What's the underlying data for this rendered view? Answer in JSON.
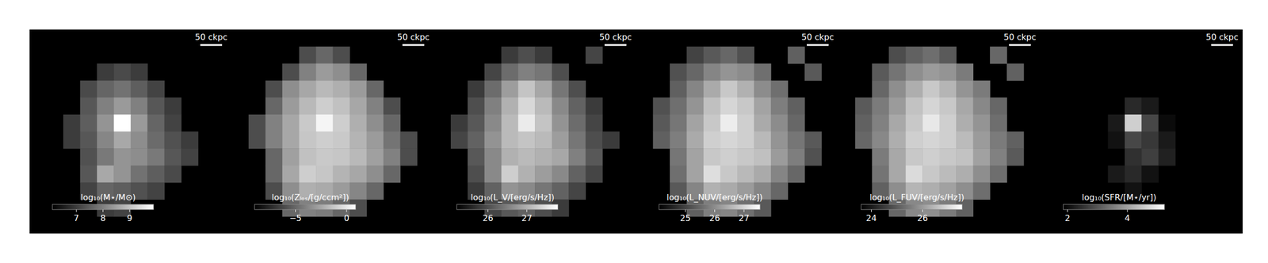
{
  "chart_data": [
    {
      "type": "heatmap",
      "colorbar_label": "log₁₀(M⋆/M⊙)",
      "colorbar_range": [
        6.1,
        9.9
      ],
      "colorbar_ticks": [
        7,
        8,
        9
      ],
      "scale_label": "50 ckpc",
      "tick_labels": false,
      "color": "gray",
      "cells": [
        [
          null,
          null,
          null,
          null,
          null,
          null,
          null,
          null,
          null,
          null,
          null,
          null
        ],
        [
          null,
          null,
          null,
          null,
          null,
          null,
          null,
          null,
          null,
          null,
          null,
          null
        ],
        [
          null,
          null,
          null,
          null,
          7.0,
          7.2,
          7.0,
          null,
          null,
          null,
          null,
          null
        ],
        [
          null,
          null,
          null,
          7.2,
          7.6,
          7.8,
          7.5,
          7.1,
          null,
          null,
          null,
          null
        ],
        [
          null,
          null,
          null,
          7.4,
          8.0,
          8.4,
          8.0,
          7.4,
          7.0,
          null,
          null,
          null
        ],
        [
          null,
          null,
          7.0,
          7.5,
          8.3,
          9.9,
          8.4,
          7.6,
          7.1,
          null,
          null,
          null
        ],
        [
          null,
          null,
          7.0,
          7.4,
          8.1,
          8.6,
          8.2,
          7.7,
          7.3,
          7.0,
          null,
          null
        ],
        [
          null,
          null,
          null,
          7.3,
          7.9,
          8.3,
          8.2,
          7.9,
          7.4,
          7.1,
          null,
          null
        ],
        [
          null,
          null,
          null,
          7.4,
          8.6,
          8.3,
          7.8,
          7.5,
          7.2,
          null,
          null,
          null
        ],
        [
          null,
          null,
          null,
          7.1,
          7.6,
          7.5,
          7.3,
          7.1,
          null,
          null,
          null,
          null
        ],
        [
          null,
          null,
          null,
          null,
          7.0,
          7.1,
          null,
          null,
          null,
          null,
          null,
          null
        ],
        [
          null,
          null,
          null,
          null,
          null,
          null,
          null,
          null,
          null,
          null,
          null,
          null
        ]
      ]
    },
    {
      "type": "heatmap",
      "colorbar_label": "log₁₀(Zₗₒₛ/[g/ccm²])",
      "colorbar_range": [
        -9,
        0.9
      ],
      "colorbar_ticks": [
        {
          "value": -5,
          "label": "−5"
        },
        0
      ],
      "scale_label": "50 ckpc",
      "tick_labels": false,
      "color": "gray",
      "cells": [
        [
          null,
          null,
          null,
          null,
          null,
          null,
          null,
          null,
          null,
          null,
          null,
          null
        ],
        [
          null,
          null,
          null,
          null,
          -6,
          -5,
          -6,
          null,
          null,
          null,
          null,
          null
        ],
        [
          null,
          null,
          null,
          -6,
          -4,
          -3,
          -3.5,
          -5,
          null,
          null,
          null,
          null
        ],
        [
          null,
          null,
          -6,
          -3.5,
          -2.5,
          -1.8,
          -2.2,
          -3,
          -5,
          null,
          null,
          null
        ],
        [
          null,
          null,
          -5,
          -3,
          -1.8,
          -1.0,
          -1.5,
          -2.5,
          -4,
          -6,
          null,
          null
        ],
        [
          null,
          -6,
          -4,
          -2.5,
          -1.2,
          0.5,
          -1.0,
          -2.2,
          -3.5,
          -5,
          null,
          null
        ],
        [
          null,
          -6,
          -4,
          -2.5,
          -1.3,
          -1.0,
          -1.2,
          -2.0,
          -3,
          -4.5,
          -6,
          null
        ],
        [
          null,
          null,
          -5,
          -2.8,
          -1.5,
          -1.2,
          -1.3,
          -1.8,
          -2.8,
          -4,
          -6,
          null
        ],
        [
          null,
          null,
          -5,
          -2.5,
          -1.0,
          -1.3,
          -2.0,
          -2.5,
          -3.5,
          -5,
          null,
          null
        ],
        [
          null,
          null,
          -6,
          -3.5,
          -2.2,
          -2.4,
          -3,
          -3.8,
          -5,
          null,
          null,
          null
        ],
        [
          null,
          null,
          null,
          -5,
          -4,
          -4.2,
          -5,
          -6,
          null,
          null,
          null,
          null
        ],
        [
          null,
          null,
          null,
          null,
          null,
          null,
          null,
          null,
          null,
          null,
          null,
          null
        ]
      ]
    },
    {
      "type": "heatmap",
      "colorbar_label": "log₁₀(L_V/[erg/s/Hz])",
      "colorbar_range": [
        25.2,
        27.8
      ],
      "colorbar_ticks": [
        26,
        27
      ],
      "scale_label": "50 ckpc",
      "tick_labels": false,
      "color": "gray",
      "cells": [
        [
          null,
          null,
          null,
          null,
          null,
          null,
          null,
          null,
          null,
          null,
          null,
          null
        ],
        [
          null,
          null,
          null,
          null,
          25.8,
          26.0,
          25.8,
          null,
          null,
          25.9,
          null,
          null
        ],
        [
          null,
          null,
          null,
          25.9,
          26.3,
          26.5,
          26.4,
          26.0,
          null,
          null,
          null,
          null
        ],
        [
          null,
          null,
          25.8,
          26.3,
          26.8,
          27.2,
          26.9,
          26.4,
          26.0,
          null,
          null,
          null
        ],
        [
          null,
          null,
          26.0,
          26.5,
          27.0,
          27.4,
          27.1,
          26.6,
          26.2,
          25.8,
          null,
          null
        ],
        [
          null,
          25.8,
          26.1,
          26.6,
          27.1,
          27.6,
          27.2,
          26.7,
          26.3,
          25.9,
          null,
          null
        ],
        [
          null,
          25.9,
          26.2,
          26.7,
          27.1,
          27.2,
          27.1,
          26.8,
          26.4,
          26.0,
          25.8,
          null
        ],
        [
          null,
          null,
          26.1,
          26.6,
          27.0,
          27.1,
          27.0,
          26.9,
          26.5,
          26.1,
          null,
          null
        ],
        [
          null,
          null,
          26.0,
          26.6,
          27.3,
          27.0,
          26.8,
          26.6,
          26.2,
          25.9,
          null,
          null
        ],
        [
          null,
          null,
          25.8,
          26.2,
          26.7,
          26.6,
          26.4,
          26.2,
          25.9,
          null,
          null,
          null
        ],
        [
          null,
          null,
          null,
          25.9,
          26.1,
          26.2,
          26.0,
          25.8,
          null,
          null,
          null,
          null
        ],
        [
          null,
          null,
          null,
          null,
          null,
          null,
          null,
          null,
          null,
          null,
          null,
          null
        ]
      ]
    },
    {
      "type": "heatmap",
      "colorbar_label": "log₁₀(L_NUV/[erg/s/Hz])",
      "colorbar_range": [
        24.1,
        27.55
      ],
      "colorbar_ticks": [
        25,
        26,
        27
      ],
      "scale_label": "50 ckpc",
      "tick_labels": false,
      "color": "gray",
      "cells": [
        [
          null,
          null,
          null,
          null,
          null,
          null,
          null,
          null,
          null,
          null,
          null,
          null
        ],
        [
          null,
          null,
          null,
          25.0,
          25.3,
          25.5,
          25.2,
          null,
          null,
          25.4,
          null,
          null
        ],
        [
          null,
          null,
          25.2,
          25.5,
          25.9,
          26.1,
          26.0,
          25.6,
          null,
          null,
          25.3,
          null
        ],
        [
          null,
          null,
          25.4,
          25.9,
          26.4,
          26.8,
          26.5,
          26.0,
          25.6,
          null,
          null,
          null
        ],
        [
          null,
          25.2,
          25.6,
          26.1,
          26.7,
          27.0,
          26.8,
          26.3,
          25.8,
          25.4,
          null,
          null
        ],
        [
          null,
          25.3,
          25.7,
          26.3,
          26.8,
          27.3,
          26.9,
          26.4,
          26.0,
          25.5,
          null,
          null
        ],
        [
          null,
          25.4,
          25.8,
          26.4,
          26.9,
          27.0,
          26.9,
          26.6,
          26.1,
          25.7,
          25.3,
          null
        ],
        [
          null,
          null,
          25.7,
          26.3,
          26.8,
          26.9,
          26.8,
          26.7,
          26.2,
          25.8,
          25.2,
          null
        ],
        [
          null,
          null,
          25.6,
          26.3,
          27.1,
          26.8,
          26.6,
          26.4,
          25.9,
          25.5,
          null,
          null
        ],
        [
          null,
          null,
          25.3,
          25.9,
          26.5,
          26.4,
          26.2,
          25.9,
          25.5,
          null,
          null,
          null
        ],
        [
          null,
          null,
          null,
          25.4,
          25.8,
          25.9,
          25.6,
          25.3,
          null,
          null,
          null,
          null
        ],
        [
          null,
          null,
          null,
          null,
          null,
          null,
          null,
          null,
          null,
          null,
          null,
          null
        ]
      ]
    },
    {
      "type": "heatmap",
      "colorbar_label": "log₁₀(L_FUV/[erg/s/Hz])",
      "colorbar_range": [
        23.6,
        27.55
      ],
      "colorbar_ticks": [
        24,
        26
      ],
      "scale_label": "50 ckpc",
      "tick_labels": false,
      "color": "gray",
      "cells": [
        [
          null,
          null,
          null,
          null,
          null,
          null,
          null,
          null,
          null,
          null,
          null,
          null
        ],
        [
          null,
          null,
          null,
          24.8,
          25.1,
          25.3,
          25.0,
          null,
          null,
          25.2,
          null,
          null
        ],
        [
          null,
          null,
          25.0,
          25.4,
          25.8,
          26.0,
          25.9,
          25.5,
          null,
          null,
          25.1,
          null
        ],
        [
          null,
          null,
          25.2,
          25.8,
          26.3,
          26.7,
          26.4,
          25.9,
          25.5,
          null,
          null,
          null
        ],
        [
          null,
          25.0,
          25.5,
          26.0,
          26.6,
          26.9,
          26.7,
          26.2,
          25.7,
          25.2,
          null,
          null
        ],
        [
          null,
          25.1,
          25.6,
          26.2,
          26.7,
          27.2,
          26.8,
          26.3,
          25.9,
          25.3,
          null,
          null
        ],
        [
          null,
          25.2,
          25.7,
          26.3,
          26.8,
          26.9,
          26.8,
          26.5,
          26.0,
          25.5,
          25.1,
          null
        ],
        [
          null,
          null,
          25.5,
          26.2,
          26.7,
          26.8,
          26.7,
          26.6,
          26.1,
          25.6,
          25.0,
          null
        ],
        [
          null,
          null,
          25.4,
          26.2,
          27.0,
          26.7,
          26.5,
          26.3,
          25.8,
          25.3,
          null,
          null
        ],
        [
          null,
          null,
          25.1,
          25.8,
          26.4,
          26.3,
          26.1,
          25.8,
          25.3,
          null,
          null,
          null
        ],
        [
          null,
          null,
          null,
          25.2,
          25.7,
          25.8,
          25.5,
          25.1,
          null,
          null,
          null,
          null
        ],
        [
          null,
          null,
          null,
          null,
          null,
          null,
          null,
          null,
          null,
          null,
          null,
          null
        ]
      ]
    },
    {
      "type": "heatmap",
      "colorbar_label": "log₁₀(SFR/[M⋆/yr])",
      "colorbar_range": [
        1.86,
        5.24
      ],
      "colorbar_ticks": [
        2,
        4
      ],
      "scale_label": "50 ckpc",
      "tick_labels": false,
      "color": "gray",
      "cells": [
        [
          null,
          null,
          null,
          null,
          null,
          null,
          null,
          null,
          null,
          null,
          null,
          null
        ],
        [
          null,
          null,
          null,
          null,
          null,
          null,
          null,
          null,
          null,
          null,
          null,
          null
        ],
        [
          null,
          null,
          null,
          null,
          null,
          null,
          null,
          null,
          null,
          null,
          null,
          null
        ],
        [
          null,
          null,
          null,
          null,
          null,
          null,
          null,
          null,
          null,
          null,
          null,
          null
        ],
        [
          null,
          null,
          null,
          null,
          null,
          2.4,
          2.2,
          null,
          null,
          null,
          null,
          null
        ],
        [
          null,
          null,
          null,
          null,
          2.2,
          4.6,
          2.8,
          2.0,
          null,
          null,
          null,
          null
        ],
        [
          null,
          null,
          null,
          null,
          2.1,
          2.8,
          2.6,
          2.2,
          null,
          null,
          null,
          null
        ],
        [
          null,
          null,
          null,
          null,
          null,
          2.5,
          2.7,
          2.3,
          null,
          null,
          null,
          null
        ],
        [
          null,
          null,
          null,
          null,
          2.2,
          2.4,
          2.1,
          null,
          null,
          null,
          null,
          null
        ],
        [
          null,
          null,
          null,
          null,
          null,
          2.1,
          null,
          null,
          null,
          null,
          null,
          null
        ],
        [
          null,
          null,
          null,
          null,
          null,
          null,
          null,
          null,
          null,
          null,
          null,
          null
        ],
        [
          null,
          null,
          null,
          null,
          null,
          null,
          null,
          null,
          null,
          null,
          null,
          null
        ]
      ]
    }
  ]
}
